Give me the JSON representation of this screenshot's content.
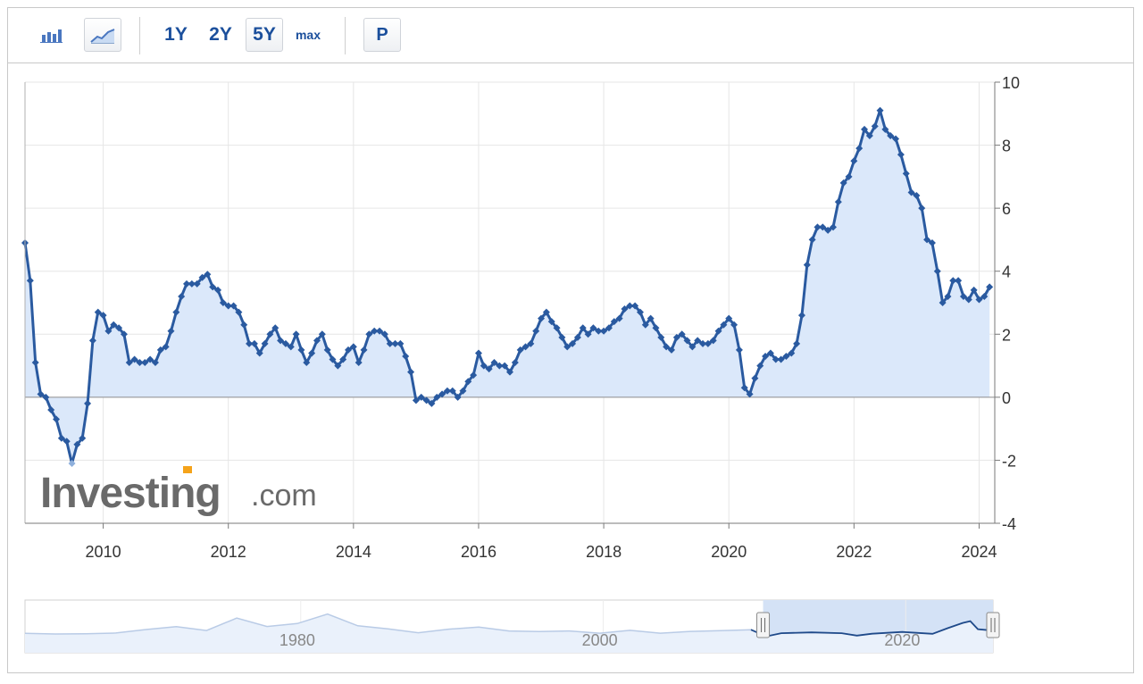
{
  "toolbar": {
    "buttons": [
      "1Y",
      "2Y",
      "5Y",
      "max"
    ],
    "active_range": "5Y",
    "p_label": "P"
  },
  "watermark": {
    "brand": "Investing",
    "suffix": ".com"
  },
  "colors": {
    "line": "#2a5aa0",
    "fill": "#dbe8fa",
    "grid": "#e6e6e6",
    "axis": "#7a7a7a",
    "text": "#333333"
  },
  "navigator": {
    "labels": [
      "1980",
      "2000",
      "2020"
    ]
  },
  "chart_data": {
    "type": "area",
    "title": "",
    "xlabel": "",
    "ylabel": "",
    "ylim": [
      -4,
      10
    ],
    "yticks": [
      10,
      8,
      6,
      4,
      2,
      0,
      -2,
      -4
    ],
    "xticks": [
      "2010",
      "2012",
      "2014",
      "2016",
      "2018",
      "2020",
      "2022",
      "2024"
    ],
    "xlim": [
      "2008-10",
      "2024-04"
    ],
    "grid": true,
    "y_axis_position": "right",
    "series": [
      {
        "x": [
          "2008-10",
          "2008-11",
          "2008-12",
          "2009-01",
          "2009-02",
          "2009-03",
          "2009-04",
          "2009-05",
          "2009-06",
          "2009-07",
          "2009-08",
          "2009-09",
          "2009-10",
          "2009-11",
          "2009-12",
          "2010-01",
          "2010-02",
          "2010-03",
          "2010-04",
          "2010-05",
          "2010-06",
          "2010-07",
          "2010-08",
          "2010-09",
          "2010-10",
          "2010-11",
          "2010-12",
          "2011-01",
          "2011-02",
          "2011-03",
          "2011-04",
          "2011-05",
          "2011-06",
          "2011-07",
          "2011-08",
          "2011-09",
          "2011-10",
          "2011-11",
          "2011-12",
          "2012-01",
          "2012-02",
          "2012-03",
          "2012-04",
          "2012-05",
          "2012-06",
          "2012-07",
          "2012-08",
          "2012-09",
          "2012-10",
          "2012-11",
          "2012-12",
          "2013-01",
          "2013-02",
          "2013-03",
          "2013-04",
          "2013-05",
          "2013-06",
          "2013-07",
          "2013-08",
          "2013-09",
          "2013-10",
          "2013-11",
          "2013-12",
          "2014-01",
          "2014-02",
          "2014-03",
          "2014-04",
          "2014-05",
          "2014-06",
          "2014-07",
          "2014-08",
          "2014-09",
          "2014-10",
          "2014-11",
          "2014-12",
          "2015-01",
          "2015-02",
          "2015-03",
          "2015-04",
          "2015-05",
          "2015-06",
          "2015-07",
          "2015-08",
          "2015-09",
          "2015-10",
          "2015-11",
          "2015-12",
          "2016-01",
          "2016-02",
          "2016-03",
          "2016-04",
          "2016-05",
          "2016-06",
          "2016-07",
          "2016-08",
          "2016-09",
          "2016-10",
          "2016-11",
          "2016-12",
          "2017-01",
          "2017-02",
          "2017-03",
          "2017-04",
          "2017-05",
          "2017-06",
          "2017-07",
          "2017-08",
          "2017-09",
          "2017-10",
          "2017-11",
          "2017-12",
          "2018-01",
          "2018-02",
          "2018-03",
          "2018-04",
          "2018-05",
          "2018-06",
          "2018-07",
          "2018-08",
          "2018-09",
          "2018-10",
          "2018-11",
          "2018-12",
          "2019-01",
          "2019-02",
          "2019-03",
          "2019-04",
          "2019-05",
          "2019-06",
          "2019-07",
          "2019-08",
          "2019-09",
          "2019-10",
          "2019-11",
          "2019-12",
          "2020-01",
          "2020-02",
          "2020-03",
          "2020-04",
          "2020-05",
          "2020-06",
          "2020-07",
          "2020-08",
          "2020-09",
          "2020-10",
          "2020-11",
          "2020-12",
          "2021-01",
          "2021-02",
          "2021-03",
          "2021-04",
          "2021-05",
          "2021-06",
          "2021-07",
          "2021-08",
          "2021-09",
          "2021-10",
          "2021-11",
          "2021-12",
          "2022-01",
          "2022-02",
          "2022-03",
          "2022-04",
          "2022-05",
          "2022-06",
          "2022-07",
          "2022-08",
          "2022-09",
          "2022-10",
          "2022-11",
          "2022-12",
          "2023-01",
          "2023-02",
          "2023-03",
          "2023-04",
          "2023-05",
          "2023-06",
          "2023-07",
          "2023-08",
          "2023-09",
          "2023-10",
          "2023-11",
          "2023-12",
          "2024-01",
          "2024-02",
          "2024-03"
        ],
        "values": [
          4.9,
          3.7,
          1.1,
          0.1,
          0.0,
          -0.4,
          -0.7,
          -1.3,
          -1.4,
          -2.1,
          -1.5,
          -1.3,
          -0.2,
          1.8,
          2.7,
          2.6,
          2.1,
          2.3,
          2.2,
          2.0,
          1.1,
          1.2,
          1.1,
          1.1,
          1.2,
          1.1,
          1.5,
          1.6,
          2.1,
          2.7,
          3.2,
          3.6,
          3.6,
          3.6,
          3.8,
          3.9,
          3.5,
          3.4,
          3.0,
          2.9,
          2.9,
          2.7,
          2.3,
          1.7,
          1.7,
          1.4,
          1.7,
          2.0,
          2.2,
          1.8,
          1.7,
          1.6,
          2.0,
          1.5,
          1.1,
          1.4,
          1.8,
          2.0,
          1.5,
          1.2,
          1.0,
          1.2,
          1.5,
          1.6,
          1.1,
          1.5,
          2.0,
          2.1,
          2.1,
          2.0,
          1.7,
          1.7,
          1.7,
          1.3,
          0.8,
          -0.1,
          0.0,
          -0.1,
          -0.2,
          0.0,
          0.1,
          0.2,
          0.2,
          0.0,
          0.2,
          0.5,
          0.7,
          1.4,
          1.0,
          0.9,
          1.1,
          1.0,
          1.0,
          0.8,
          1.1,
          1.5,
          1.6,
          1.7,
          2.1,
          2.5,
          2.7,
          2.4,
          2.2,
          1.9,
          1.6,
          1.7,
          1.9,
          2.2,
          2.0,
          2.2,
          2.1,
          2.1,
          2.2,
          2.4,
          2.5,
          2.8,
          2.9,
          2.9,
          2.7,
          2.3,
          2.5,
          2.2,
          1.9,
          1.6,
          1.5,
          1.9,
          2.0,
          1.8,
          1.6,
          1.8,
          1.7,
          1.7,
          1.8,
          2.1,
          2.3,
          2.5,
          2.3,
          1.5,
          0.3,
          0.1,
          0.6,
          1.0,
          1.3,
          1.4,
          1.2,
          1.2,
          1.3,
          1.4,
          1.7,
          2.6,
          4.2,
          5.0,
          5.4,
          5.4,
          5.3,
          5.4,
          6.2,
          6.8,
          7.0,
          7.5,
          7.9,
          8.5,
          8.3,
          8.6,
          9.1,
          8.5,
          8.3,
          8.2,
          7.7,
          7.1,
          6.5,
          6.4,
          6.0,
          5.0,
          4.9,
          4.0,
          3.0,
          3.2,
          3.7,
          3.7,
          3.2,
          3.1,
          3.4,
          3.1,
          3.2,
          3.5
        ]
      }
    ],
    "navigator": {
      "x": [
        1960,
        1962,
        1964,
        1966,
        1968,
        1970,
        1972,
        1974,
        1976,
        1978,
        1980,
        1982,
        1984,
        1986,
        1988,
        1990,
        1992,
        1994,
        1996,
        1998,
        2000,
        2002,
        2004,
        2006,
        2008,
        2009,
        2010,
        2012,
        2014,
        2015,
        2016,
        2018,
        2020,
        2021,
        2022,
        2022.5,
        2023,
        2024
      ],
      "values": [
        1.5,
        1.1,
        1.2,
        1.7,
        3.9,
        5.7,
        3.3,
        11.0,
        5.8,
        7.6,
        13.5,
        6.2,
        4.3,
        1.9,
        4.1,
        5.4,
        3.0,
        2.6,
        3.0,
        1.6,
        3.4,
        1.6,
        2.7,
        3.2,
        3.8,
        -0.4,
        1.6,
        2.1,
        1.6,
        0.1,
        1.3,
        2.4,
        1.2,
        4.7,
        8.0,
        9.1,
        4.1,
        3.2
      ]
    }
  }
}
